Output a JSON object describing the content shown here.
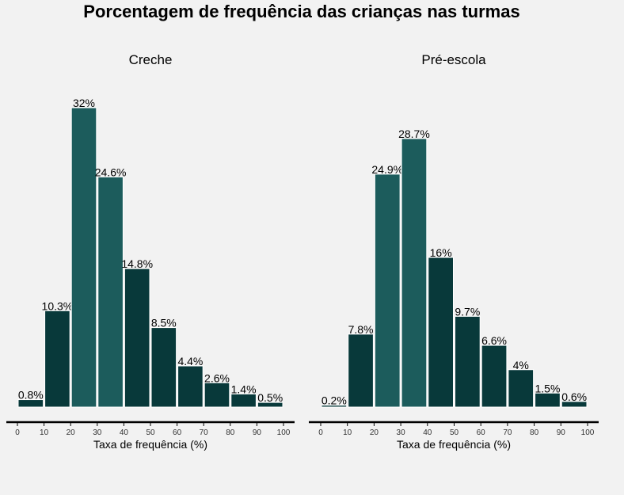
{
  "title": "Porcentagem de frequência das crianças nas turmas",
  "chart_data": [
    {
      "type": "bar",
      "title": "Creche",
      "xlabel": "Taxa de frequência (%)",
      "ylabel": "",
      "ticks": [
        "0",
        "10",
        "20",
        "30",
        "40",
        "50",
        "60",
        "70",
        "80",
        "90",
        "100"
      ],
      "bins": [
        [
          0,
          10
        ],
        [
          10,
          20
        ],
        [
          20,
          30
        ],
        [
          30,
          40
        ],
        [
          40,
          50
        ],
        [
          50,
          60
        ],
        [
          60,
          70
        ],
        [
          70,
          80
        ],
        [
          80,
          90
        ],
        [
          90,
          100
        ]
      ],
      "values": [
        0.8,
        10.3,
        32,
        24.6,
        14.8,
        8.5,
        4.4,
        2.6,
        1.4,
        0.5
      ],
      "labels": [
        "0.8%",
        "10.3%",
        "32%",
        "24.6%",
        "14.8%",
        "8.5%",
        "4.4%",
        "2.6%",
        "1.4%",
        "0.5%"
      ],
      "highlight": [
        false,
        false,
        true,
        true,
        false,
        false,
        false,
        false,
        false,
        false
      ],
      "ylim": [
        0,
        32
      ]
    },
    {
      "type": "bar",
      "title": "Pré-escola",
      "xlabel": "Taxa de frequência (%)",
      "ylabel": "",
      "ticks": [
        "0",
        "10",
        "20",
        "30",
        "40",
        "50",
        "60",
        "70",
        "80",
        "90",
        "100"
      ],
      "bins": [
        [
          0,
          10
        ],
        [
          10,
          20
        ],
        [
          20,
          30
        ],
        [
          30,
          40
        ],
        [
          40,
          50
        ],
        [
          50,
          60
        ],
        [
          60,
          70
        ],
        [
          70,
          80
        ],
        [
          80,
          90
        ],
        [
          90,
          100
        ]
      ],
      "values": [
        0.2,
        7.8,
        24.9,
        28.7,
        16,
        9.7,
        6.6,
        4,
        1.5,
        0.6
      ],
      "labels": [
        "0.2%",
        "7.8%",
        "24.9%",
        "28.7%",
        "16%",
        "9.7%",
        "6.6%",
        "4%",
        "1.5%",
        "0.6%"
      ],
      "highlight": [
        false,
        false,
        true,
        true,
        false,
        false,
        false,
        false,
        false,
        false
      ],
      "ylim": [
        0,
        32
      ]
    }
  ],
  "colors": {
    "bar": "#08393a",
    "bar_highlight": "#1c5c5c",
    "background": "#f2f2f2",
    "axis": "#000000"
  }
}
